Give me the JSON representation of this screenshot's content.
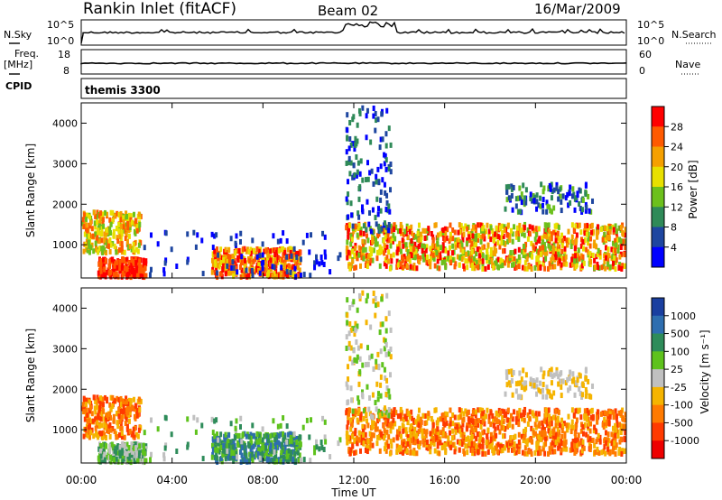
{
  "header": {
    "title": "Rankin Inlet (fitACF)",
    "beam": "Beam 02",
    "date": "16/Mar/2009"
  },
  "noise_panel": {
    "left_label": "N.Sky",
    "right_label": "N.Search",
    "ticks": [
      "10^5",
      "10^0"
    ]
  },
  "freq_panel": {
    "left_label_top": "Freq.",
    "left_label_bottom": "[MHz]",
    "left_ticks": [
      "18",
      "8"
    ],
    "right_label": "Nave",
    "right_ticks": [
      "60",
      "0"
    ]
  },
  "cpid": {
    "label": "CPID",
    "value": "themis 3300"
  },
  "colors": {
    "power": [
      "#0000ff",
      "#1e46a0",
      "#2f8a58",
      "#6cc01c",
      "#e8e000",
      "#f5a000",
      "#ff5a00",
      "#ff0000"
    ],
    "velocity": [
      "#1a3fa0",
      "#2e6eb0",
      "#2e8c5a",
      "#5ec21c",
      "#c0c0c0",
      "#f5b400",
      "#ff7a00",
      "#ff3a00",
      "#ee0000"
    ]
  },
  "chart_data": [
    {
      "type": "heatmap",
      "ylabel": "Slant Range [km]",
      "ylim": [
        180,
        4500
      ],
      "yticks": [
        1000,
        2000,
        3000,
        4000
      ],
      "xlim": [
        0,
        24
      ],
      "colorbar": {
        "label": "Power [dB]",
        "ticks": [
          "4",
          "8",
          "12",
          "16",
          "20",
          "24",
          "28"
        ],
        "range": [
          0,
          32
        ]
      }
    },
    {
      "type": "heatmap",
      "ylabel": "Slant Range [km]",
      "ylim": [
        180,
        4500
      ],
      "yticks": [
        1000,
        2000,
        3000,
        4000
      ],
      "xlim": [
        0,
        24
      ],
      "xlabel": "Time UT",
      "xticks": [
        "00:00",
        "04:00",
        "08:00",
        "12:00",
        "16:00",
        "20:00",
        "00:00"
      ],
      "colorbar": {
        "label": "Velocity [m s⁻¹]",
        "ticks": [
          "1000",
          "500",
          "100",
          "25",
          "-25",
          "-100",
          "-500",
          "-1000"
        ]
      }
    }
  ]
}
